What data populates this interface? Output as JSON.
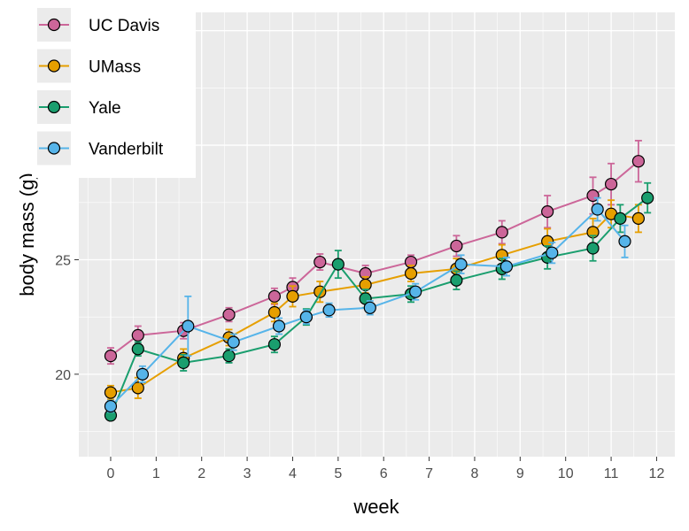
{
  "chart_data": {
    "type": "line",
    "xlabel": "week",
    "ylabel": "body mass (g)",
    "xlim": [
      -0.7,
      12.4
    ],
    "ylim": [
      16.4,
      35.8
    ],
    "xticks": [
      0,
      1,
      2,
      3,
      4,
      5,
      6,
      7,
      8,
      9,
      10,
      11,
      12
    ],
    "yticks": [
      20,
      25,
      30
    ],
    "grid": true,
    "error_bars": true,
    "legend_position": "top-left",
    "series": [
      {
        "name": "UC Davis",
        "color": "#cc6699",
        "points": [
          {
            "x": 0,
            "y": 20.8,
            "err": 0.35
          },
          {
            "x": 0.6,
            "y": 21.7,
            "err": 0.4
          },
          {
            "x": 1.6,
            "y": 21.9,
            "err": 0.35
          },
          {
            "x": 2.6,
            "y": 22.6,
            "err": 0.3
          },
          {
            "x": 3.6,
            "y": 23.4,
            "err": 0.35
          },
          {
            "x": 4.0,
            "y": 23.8,
            "err": 0.4
          },
          {
            "x": 4.6,
            "y": 24.9,
            "err": 0.35
          },
          {
            "x": 5.6,
            "y": 24.4,
            "err": 0.35
          },
          {
            "x": 6.6,
            "y": 24.9,
            "err": 0.3
          },
          {
            "x": 7.6,
            "y": 25.6,
            "err": 0.45
          },
          {
            "x": 8.6,
            "y": 26.2,
            "err": 0.5
          },
          {
            "x": 9.6,
            "y": 27.1,
            "err": 0.7
          },
          {
            "x": 10.6,
            "y": 27.8,
            "err": 0.8
          },
          {
            "x": 11.0,
            "y": 28.3,
            "err": 0.9
          },
          {
            "x": 11.6,
            "y": 29.3,
            "err": 0.9
          }
        ]
      },
      {
        "name": "UMass",
        "color": "#e69f00",
        "points": [
          {
            "x": 0,
            "y": 19.2,
            "err": 0.3
          },
          {
            "x": 0.6,
            "y": 19.4,
            "err": 0.45
          },
          {
            "x": 1.6,
            "y": 20.7,
            "err": 0.4
          },
          {
            "x": 2.6,
            "y": 21.6,
            "err": 0.35
          },
          {
            "x": 3.6,
            "y": 22.7,
            "err": 0.4
          },
          {
            "x": 4.0,
            "y": 23.4,
            "err": 0.45
          },
          {
            "x": 4.6,
            "y": 23.6,
            "err": 0.45
          },
          {
            "x": 5.6,
            "y": 23.9,
            "err": 0.35
          },
          {
            "x": 6.6,
            "y": 24.4,
            "err": 0.35
          },
          {
            "x": 7.6,
            "y": 24.6,
            "err": 0.45
          },
          {
            "x": 8.6,
            "y": 25.2,
            "err": 0.45
          },
          {
            "x": 9.6,
            "y": 25.8,
            "err": 0.55
          },
          {
            "x": 10.6,
            "y": 26.2,
            "err": 0.6
          },
          {
            "x": 11.0,
            "y": 27.0,
            "err": 0.6
          },
          {
            "x": 11.6,
            "y": 26.8,
            "err": 0.6
          }
        ]
      },
      {
        "name": "Yale",
        "color": "#1a9e6e",
        "points": [
          {
            "x": 0,
            "y": 18.2,
            "err": 0.2
          },
          {
            "x": 0.6,
            "y": 21.1,
            "err": 0.3
          },
          {
            "x": 1.6,
            "y": 20.5,
            "err": 0.35
          },
          {
            "x": 2.6,
            "y": 20.8,
            "err": 0.3
          },
          {
            "x": 3.6,
            "y": 21.3,
            "err": 0.35
          },
          {
            "x": 4.3,
            "y": 22.5,
            "err": 0.35
          },
          {
            "x": 5.0,
            "y": 24.8,
            "err": 0.6
          },
          {
            "x": 5.6,
            "y": 23.3,
            "err": 0.4
          },
          {
            "x": 6.6,
            "y": 23.5,
            "err": 0.35
          },
          {
            "x": 7.6,
            "y": 24.1,
            "err": 0.4
          },
          {
            "x": 8.6,
            "y": 24.6,
            "err": 0.45
          },
          {
            "x": 9.6,
            "y": 25.1,
            "err": 0.5
          },
          {
            "x": 10.6,
            "y": 25.5,
            "err": 0.55
          },
          {
            "x": 11.2,
            "y": 26.8,
            "err": 0.6
          },
          {
            "x": 11.8,
            "y": 27.7,
            "err": 0.65
          }
        ]
      },
      {
        "name": "Vanderbilt",
        "color": "#56b4e9",
        "points": [
          {
            "x": 0,
            "y": 18.6,
            "err": 0.25
          },
          {
            "x": 0.7,
            "y": 20.0,
            "err": 0.35
          },
          {
            "x": 1.7,
            "y": 22.1,
            "err": 1.3
          },
          {
            "x": 2.7,
            "y": 21.4,
            "err": 0.35
          },
          {
            "x": 3.7,
            "y": 22.1,
            "err": 0.35
          },
          {
            "x": 4.3,
            "y": 22.5,
            "err": 0.3
          },
          {
            "x": 4.8,
            "y": 22.8,
            "err": 0.3
          },
          {
            "x": 5.7,
            "y": 22.9,
            "err": 0.3
          },
          {
            "x": 6.7,
            "y": 23.6,
            "err": 0.35
          },
          {
            "x": 7.7,
            "y": 24.8,
            "err": 0.4
          },
          {
            "x": 8.7,
            "y": 24.7,
            "err": 0.4
          },
          {
            "x": 9.7,
            "y": 25.3,
            "err": 0.45
          },
          {
            "x": 10.7,
            "y": 27.2,
            "err": 0.5
          },
          {
            "x": 11.3,
            "y": 25.8,
            "err": 0.7
          }
        ]
      }
    ]
  }
}
